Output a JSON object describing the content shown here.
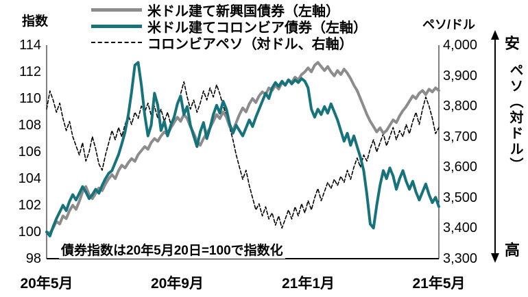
{
  "left_axis_title": "指数",
  "right_axis_title": "ペソ/ドル",
  "annotation": "債券指数は20年5月20日=100で指数化",
  "side": {
    "top": "安",
    "middle": "ペソ（対ドル）",
    "bottom": "高"
  },
  "legend": [
    {
      "label": "米ドル建て新興国債券（左軸）",
      "color": "#8c8c8c",
      "style": "solid"
    },
    {
      "label": "米ドル建てコロンビア債券（左軸）",
      "color": "#16737b",
      "style": "solid"
    },
    {
      "label": "コロンビアペソ（対ドル、右軸）",
      "color": "#000000",
      "style": "dashed"
    }
  ],
  "chart_data": {
    "type": "line",
    "title": "",
    "xlabel": "",
    "ylabel_left": "指数",
    "ylabel_right": "ペソ/ドル",
    "grid": false,
    "legend_position": "top",
    "x_tick_labels": [
      "20年5月",
      "20年9月",
      "21年1月",
      "21年5月"
    ],
    "x_tick_positions": [
      0,
      0.333,
      0.667,
      1
    ],
    "left_axis": {
      "label": "指数",
      "min": 98,
      "max": 114,
      "ticks": [
        "114",
        "112",
        "110",
        "108",
        "106",
        "104",
        "102",
        "100",
        "98"
      ]
    },
    "right_axis": {
      "label": "ペソ/ドル",
      "min": 3300,
      "max": 4000,
      "ticks": [
        "4,000",
        "3,900",
        "3,800",
        "3,700",
        "3,600",
        "3,500",
        "3,400",
        "3,300"
      ]
    },
    "series": [
      {
        "name": "米ドル建て新興国債券（左軸）",
        "axis": "left",
        "color": "#8c8c8c",
        "style": "solid",
        "values": [
          100.0,
          99.9,
          100.3,
          100.8,
          100.6,
          101.2,
          101.0,
          101.6,
          102.0,
          101.7,
          102.3,
          103.0,
          103.4,
          102.8,
          102.5,
          102.9,
          103.3,
          103.1,
          103.6,
          104.0,
          104.3,
          104.0,
          104.6,
          105.0,
          104.8,
          105.2,
          105.5,
          105.3,
          105.8,
          106.1,
          106.4,
          106.2,
          106.7,
          107.0,
          106.8,
          107.2,
          107.5,
          107.3,
          107.8,
          108.2,
          108.6,
          108.3,
          108.8,
          108.5,
          107.9,
          107.4,
          106.8,
          106.5,
          107.0,
          107.4,
          107.8,
          108.3,
          108.8,
          108.5,
          109.0,
          108.6,
          107.9,
          107.6,
          108.2,
          108.8,
          109.3,
          109.0,
          109.6,
          110.0,
          109.7,
          110.2,
          110.5,
          110.3,
          110.8,
          110.6,
          111.0,
          110.7,
          111.2,
          111.0,
          111.4,
          111.2,
          111.6,
          111.4,
          111.8,
          112.0,
          112.3,
          112.0,
          112.5,
          112.7,
          112.4,
          112.1,
          112.4,
          112.0,
          111.7,
          112.1,
          111.8,
          112.2,
          111.9,
          111.5,
          111.0,
          110.6,
          110.0,
          109.4,
          108.8,
          108.3,
          107.9,
          107.5,
          107.8,
          107.4,
          107.6,
          108.0,
          108.4,
          108.2,
          108.7,
          109.1,
          109.4,
          109.8,
          110.2,
          110.0,
          110.4,
          110.6,
          110.3,
          110.7,
          110.5,
          110.8,
          110.6
        ]
      },
      {
        "name": "米ドル建てコロンビア債券（左軸）",
        "axis": "left",
        "color": "#16737b",
        "style": "solid",
        "values": [
          100.0,
          99.7,
          100.4,
          101.0,
          101.5,
          102.0,
          101.6,
          102.3,
          102.8,
          102.4,
          102.9,
          103.4,
          103.0,
          102.5,
          102.8,
          103.2,
          102.9,
          103.5,
          104.0,
          104.4,
          104.6,
          105.2,
          105.8,
          106.6,
          107.5,
          108.8,
          110.5,
          112.5,
          112.7,
          111.0,
          108.8,
          107.2,
          108.0,
          110.4,
          109.5,
          107.6,
          108.3,
          107.2,
          108.0,
          108.6,
          109.6,
          110.2,
          108.8,
          109.4,
          108.0,
          107.2,
          106.4,
          107.5,
          108.2,
          107.0,
          107.8,
          108.8,
          109.5,
          108.9,
          109.8,
          109.2,
          108.1,
          107.4,
          108.0,
          107.6,
          107.2,
          107.8,
          108.4,
          107.9,
          108.6,
          109.2,
          109.8,
          110.4,
          110.0,
          110.8,
          111.2,
          110.9,
          111.3,
          111.0,
          111.4,
          111.1,
          111.4,
          111.2,
          111.5,
          111.3,
          110.8,
          109.2,
          108.6,
          109.2,
          108.8,
          109.4,
          108.9,
          109.6,
          109.0,
          108.4,
          107.6,
          106.8,
          107.4,
          106.5,
          107.2,
          106.4,
          105.6,
          104.6,
          102.8,
          100.6,
          100.3,
          102.0,
          103.5,
          104.6,
          104.0,
          104.8,
          104.2,
          103.2,
          104.0,
          104.6,
          103.8,
          103.2,
          103.8,
          103.0,
          102.4,
          103.0,
          103.6,
          102.8,
          102.2,
          102.6,
          101.9
        ]
      },
      {
        "name": "コロンビアペソ（対ドル、右軸）",
        "axis": "right",
        "color": "#000000",
        "style": "dashed",
        "values": [
          3790,
          3850,
          3820,
          3780,
          3810,
          3760,
          3720,
          3750,
          3700,
          3670,
          3640,
          3680,
          3620,
          3650,
          3700,
          3660,
          3610,
          3590,
          3640,
          3680,
          3720,
          3690,
          3730,
          3700,
          3740,
          3770,
          3740,
          3780,
          3760,
          3800,
          3780,
          3810,
          3770,
          3800,
          3760,
          3790,
          3750,
          3780,
          3740,
          3770,
          3800,
          3840,
          3880,
          3830,
          3790,
          3820,
          3780,
          3810,
          3850,
          3820,
          3860,
          3830,
          3870,
          3840,
          3800,
          3770,
          3730,
          3690,
          3640,
          3600,
          3560,
          3590,
          3540,
          3500,
          3460,
          3480,
          3440,
          3470,
          3430,
          3450,
          3410,
          3440,
          3400,
          3430,
          3460,
          3430,
          3470,
          3440,
          3480,
          3450,
          3490,
          3460,
          3500,
          3530,
          3490,
          3520,
          3550,
          3530,
          3560,
          3540,
          3570,
          3550,
          3590,
          3560,
          3600,
          3630,
          3600,
          3640,
          3620,
          3660,
          3690,
          3650,
          3680,
          3710,
          3670,
          3700,
          3730,
          3690,
          3720,
          3700,
          3740,
          3710,
          3750,
          3780,
          3740,
          3790,
          3830,
          3800,
          3760,
          3710,
          3730
        ]
      }
    ]
  }
}
